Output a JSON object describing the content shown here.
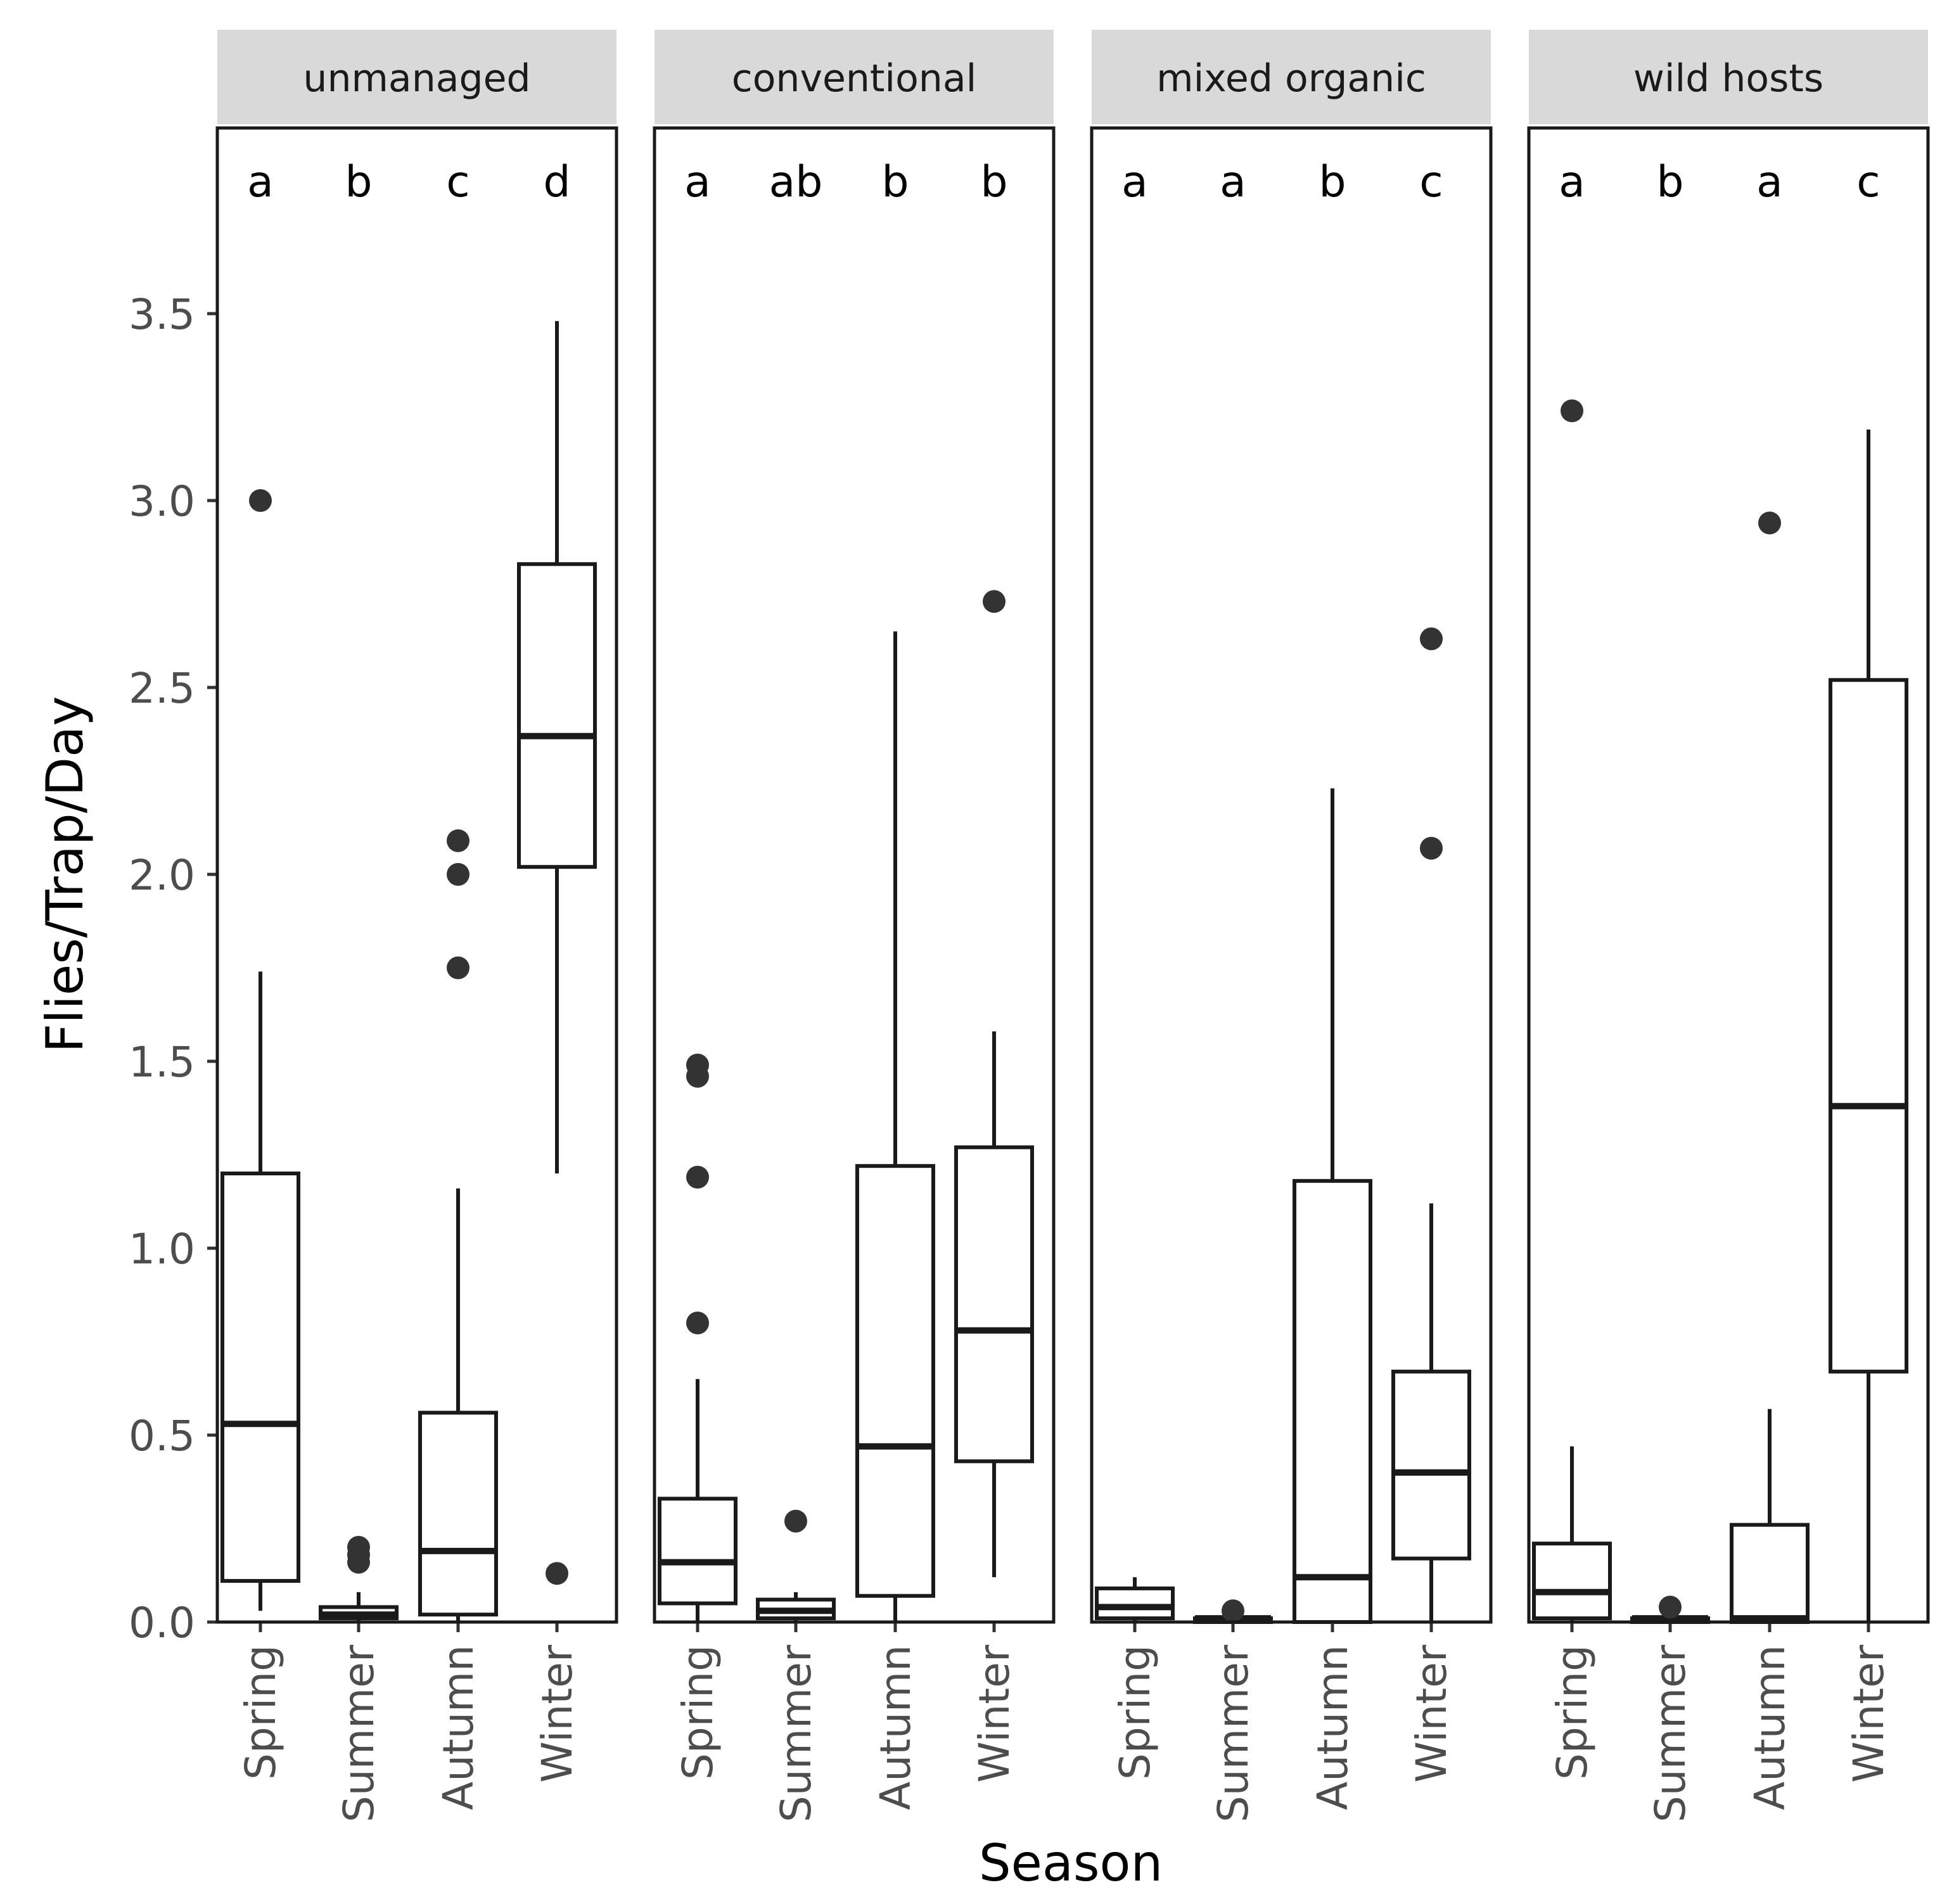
{
  "chart_data": {
    "type": "box",
    "title": "",
    "xlabel": "Season",
    "ylabel": "Flies/Trap/Day",
    "ylim": [
      0,
      4.0
    ],
    "yticks": [
      0.0,
      0.5,
      1.0,
      1.5,
      2.0,
      2.5,
      3.0,
      3.5
    ],
    "ytick_labels": [
      "0.0",
      "0.5",
      "1.0",
      "1.5",
      "2.0",
      "2.5",
      "3.0",
      "3.5"
    ],
    "categories": [
      "Spring",
      "Summer",
      "Autumn",
      "Winter"
    ],
    "colors": {
      "box": "#1a1a1a",
      "strip": "#d9d9d9",
      "point": "#333333"
    },
    "facets": [
      {
        "name": "unmanaged",
        "letters": [
          "a",
          "b",
          "c",
          "d"
        ],
        "boxes": [
          {
            "category": "Spring",
            "whisker_low": 0.03,
            "q1": 0.11,
            "median": 0.53,
            "q3": 1.2,
            "whisker_high": 1.74,
            "outliers": [
              3.0
            ]
          },
          {
            "category": "Summer",
            "whisker_low": 0.0,
            "q1": 0.01,
            "median": 0.02,
            "q3": 0.04,
            "whisker_high": 0.08,
            "outliers": [
              0.16,
              0.18,
              0.2
            ]
          },
          {
            "category": "Autumn",
            "whisker_low": 0.0,
            "q1": 0.02,
            "median": 0.19,
            "q3": 0.56,
            "whisker_high": 1.16,
            "outliers": [
              1.75,
              2.0,
              2.09
            ]
          },
          {
            "category": "Winter",
            "whisker_low": 1.2,
            "q1": 2.02,
            "median": 2.37,
            "q3": 2.83,
            "whisker_high": 3.48,
            "outliers": [
              0.13
            ]
          }
        ]
      },
      {
        "name": "conventional",
        "letters": [
          "a",
          "ab",
          "b",
          "b"
        ],
        "boxes": [
          {
            "category": "Spring",
            "whisker_low": 0.0,
            "q1": 0.05,
            "median": 0.16,
            "q3": 0.33,
            "whisker_high": 0.65,
            "outliers": [
              0.8,
              1.19,
              1.46,
              1.49
            ]
          },
          {
            "category": "Summer",
            "whisker_low": 0.0,
            "q1": 0.01,
            "median": 0.03,
            "q3": 0.06,
            "whisker_high": 0.08,
            "outliers": [
              0.27
            ]
          },
          {
            "category": "Autumn",
            "whisker_low": 0.0,
            "q1": 0.07,
            "median": 0.47,
            "q3": 1.22,
            "whisker_high": 2.65,
            "outliers": []
          },
          {
            "category": "Winter",
            "whisker_low": 0.12,
            "q1": 0.43,
            "median": 0.78,
            "q3": 1.27,
            "whisker_high": 1.58,
            "outliers": [
              2.73
            ]
          }
        ]
      },
      {
        "name": "mixed organic",
        "letters": [
          "a",
          "a",
          "b",
          "c"
        ],
        "boxes": [
          {
            "category": "Spring",
            "whisker_low": 0.0,
            "q1": 0.01,
            "median": 0.04,
            "q3": 0.09,
            "whisker_high": 0.12,
            "outliers": []
          },
          {
            "category": "Summer",
            "whisker_low": 0.0,
            "q1": 0.0,
            "median": 0.01,
            "q3": 0.01,
            "whisker_high": 0.02,
            "outliers": [
              0.03
            ]
          },
          {
            "category": "Autumn",
            "whisker_low": 0.0,
            "q1": 0.0,
            "median": 0.12,
            "q3": 1.18,
            "whisker_high": 2.23,
            "outliers": []
          },
          {
            "category": "Winter",
            "whisker_low": 0.0,
            "q1": 0.17,
            "median": 0.4,
            "q3": 0.67,
            "whisker_high": 1.12,
            "outliers": [
              2.07,
              2.63
            ]
          }
        ]
      },
      {
        "name": "wild hosts",
        "letters": [
          "a",
          "b",
          "a",
          "c"
        ],
        "boxes": [
          {
            "category": "Spring",
            "whisker_low": 0.0,
            "q1": 0.01,
            "median": 0.08,
            "q3": 0.21,
            "whisker_high": 0.47,
            "outliers": [
              3.24
            ]
          },
          {
            "category": "Summer",
            "whisker_low": 0.0,
            "q1": 0.0,
            "median": 0.01,
            "q3": 0.01,
            "whisker_high": 0.02,
            "outliers": [
              0.04
            ]
          },
          {
            "category": "Autumn",
            "whisker_low": 0.0,
            "q1": 0.0,
            "median": 0.01,
            "q3": 0.26,
            "whisker_high": 0.57,
            "outliers": [
              2.94
            ]
          },
          {
            "category": "Winter",
            "whisker_low": 0.0,
            "q1": 0.67,
            "median": 1.38,
            "q3": 2.52,
            "whisker_high": 3.19,
            "outliers": []
          }
        ]
      }
    ]
  }
}
